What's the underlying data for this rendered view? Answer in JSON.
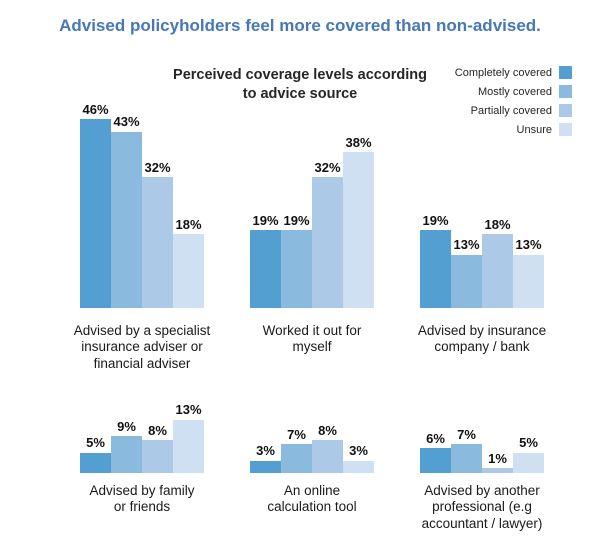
{
  "page_title": "Advised policyholders feel more covered than non-advised.",
  "chart": {
    "title_line1": "Perceived coverage levels according",
    "title_line2": "to advice source"
  },
  "legend": [
    {
      "label": "Completely covered",
      "color": "#539fd2"
    },
    {
      "label": "Mostly covered",
      "color": "#8abadd"
    },
    {
      "label": "Partially covered",
      "color": "#accae7"
    },
    {
      "label": "Unsure",
      "color": "#cfe0f2"
    }
  ],
  "colors": {
    "title": "#4678b7",
    "series": [
      "#539fd2",
      "#8abadd",
      "#accae7",
      "#cfe0f2"
    ],
    "text": "#1a1a1a"
  },
  "chart_data": {
    "type": "bar",
    "title": "Perceived coverage levels according to advice source",
    "subtitle": "Advised policyholders feel more covered than non-advised.",
    "series_names": [
      "Completely covered",
      "Mostly covered",
      "Partially covered",
      "Unsure"
    ],
    "value_suffix": "%",
    "ylim": [
      0,
      50
    ],
    "grid": false,
    "legend_position": "top-right",
    "groups": [
      {
        "category": "Advised by a specialist insurance adviser or financial adviser",
        "label_lines": [
          "Advised by a specialist",
          "insurance adviser or",
          "financial adviser"
        ],
        "values": [
          46,
          43,
          32,
          18
        ]
      },
      {
        "category": "Worked it out for myself",
        "label_lines": [
          "Worked it out for",
          "myself"
        ],
        "values": [
          19,
          19,
          32,
          38
        ]
      },
      {
        "category": "Advised by insurance company / bank",
        "label_lines": [
          "Advised by insurance",
          "company / bank"
        ],
        "values": [
          19,
          13,
          18,
          13
        ]
      },
      {
        "category": "Advised by family or friends",
        "label_lines": [
          "Advised by family",
          "or friends"
        ],
        "values": [
          5,
          9,
          8,
          13
        ]
      },
      {
        "category": "An online calculation tool",
        "label_lines": [
          "An online",
          "calculation tool"
        ],
        "values": [
          3,
          7,
          8,
          3
        ]
      },
      {
        "category": "Advised by another professional (e.g accountant / lawyer)",
        "label_lines": [
          "Advised by another",
          "professional (e.g",
          "accountant / lawyer)"
        ],
        "values": [
          6,
          7,
          1,
          5
        ]
      }
    ]
  }
}
